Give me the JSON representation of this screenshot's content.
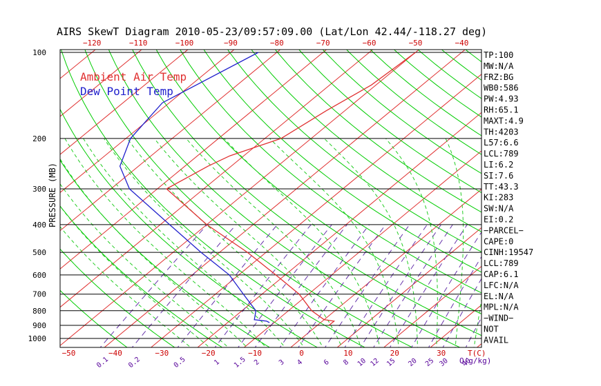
{
  "title": "AIRS SkewT Diagram 2010-05-23/09:57:09.00 (Lat/Lon 42.44/-118.27 deg)",
  "chart_data": {
    "type": "line",
    "title": "AIRS SkewT Diagram 2010-05-23/09:57:09.00 (Lat/Lon 42.44/-118.27 deg)",
    "ylabel": "PRESSURE (MB)",
    "y_scale": "log",
    "y_reversed": true,
    "ylim": [
      1050,
      100
    ],
    "pressure_ticks": [
      100,
      200,
      300,
      400,
      500,
      600,
      700,
      800,
      900,
      1000
    ],
    "pressure_tick_labels": [
      "100",
      "200",
      "300",
      "400",
      "500",
      "600",
      "700",
      "800",
      "900",
      "1000"
    ],
    "top_temp_ticks": [
      -120,
      -110,
      -100,
      -90,
      -80,
      -70,
      -60,
      -50,
      -40
    ],
    "top_temp_tick_labels": [
      "−120",
      "−110",
      "−100",
      "−90",
      "−80",
      "−70",
      "−60",
      "−50",
      "−40"
    ],
    "bottom_temp_ticks": [
      -50,
      -40,
      -30,
      -20,
      -10,
      0,
      10,
      20,
      30
    ],
    "bottom_temp_tick_labels": [
      "−50",
      "−40",
      "−30",
      "−20",
      "−10",
      "0",
      "10",
      "20",
      "30"
    ],
    "bottom_temp_unit": "T(C)",
    "mixing_ratio_ticks": [
      0.1,
      0.2,
      0.5,
      1,
      1.5,
      2,
      3,
      4,
      6,
      8,
      10,
      12,
      15,
      20,
      25,
      30,
      40
    ],
    "mixing_ratio_tick_labels": [
      "0.1",
      "0.2",
      "0.5",
      "1",
      "1.5",
      "2",
      "3",
      "4",
      "6",
      "8",
      "10",
      "12",
      "15",
      "20",
      "25",
      "30",
      "40"
    ],
    "mixing_ratio_unit": "Q(g/kg)",
    "grid": true,
    "legend_position": "top-left",
    "series": [
      {
        "name": "Ambient Air Temp",
        "color": "#e03030",
        "points": [
          {
            "p": 100,
            "t": -50
          },
          {
            "p": 130,
            "t": -51
          },
          {
            "p": 160,
            "t": -54
          },
          {
            "p": 200,
            "t": -56.5
          },
          {
            "p": 230,
            "t": -63
          },
          {
            "p": 250,
            "t": -65
          },
          {
            "p": 300,
            "t": -68
          },
          {
            "p": 400,
            "t": -50
          },
          {
            "p": 500,
            "t": -34
          },
          {
            "p": 600,
            "t": -22
          },
          {
            "p": 700,
            "t": -12
          },
          {
            "p": 800,
            "t": -5
          },
          {
            "p": 860,
            "t": 0
          },
          {
            "p": 870,
            "t": 2.5
          },
          {
            "p": 900,
            "t": 2.5
          }
        ]
      },
      {
        "name": "Dew Point Temp",
        "color": "#2020cc",
        "points": [
          {
            "p": 100,
            "t": -84
          },
          {
            "p": 150,
            "t": -91.5
          },
          {
            "p": 200,
            "t": -89
          },
          {
            "p": 250,
            "t": -84
          },
          {
            "p": 300,
            "t": -76
          },
          {
            "p": 400,
            "t": -58
          },
          {
            "p": 500,
            "t": -44
          },
          {
            "p": 600,
            "t": -32
          },
          {
            "p": 700,
            "t": -24
          },
          {
            "p": 800,
            "t": -17
          },
          {
            "p": 860,
            "t": -15
          },
          {
            "p": 870,
            "t": -12
          },
          {
            "p": 880,
            "t": -11
          }
        ]
      }
    ]
  },
  "indices": [
    "TP:100",
    "MW:N/A",
    "FRZ:BG",
    "WB0:586",
    "PW:4.93",
    "RH:65.1",
    "MAXT:4.9",
    "TH:4203",
    "L57:6.6",
    "LCL:789",
    "LI:6.2",
    "SI:7.6",
    "TT:43.3",
    "KI:283",
    "SW:N/A",
    "EI:0.2",
    "−PARCEL−",
    "CAPE:0",
    "CINH:19547",
    "LCL:789",
    "CAP:6.1",
    "LFC:N/A",
    "EL:N/A",
    "MPL:N/A",
    "−WIND−",
    "NOT",
    "AVAIL"
  ],
  "colors": {
    "isotherm": "#e03030",
    "dry_adiabat": "#00cc00",
    "moist_adiabat": "#22cc22",
    "mixing_ratio": "#6633aa",
    "isobar": "#000000",
    "air_temp": "#e03030",
    "dew_point": "#2020cc"
  }
}
